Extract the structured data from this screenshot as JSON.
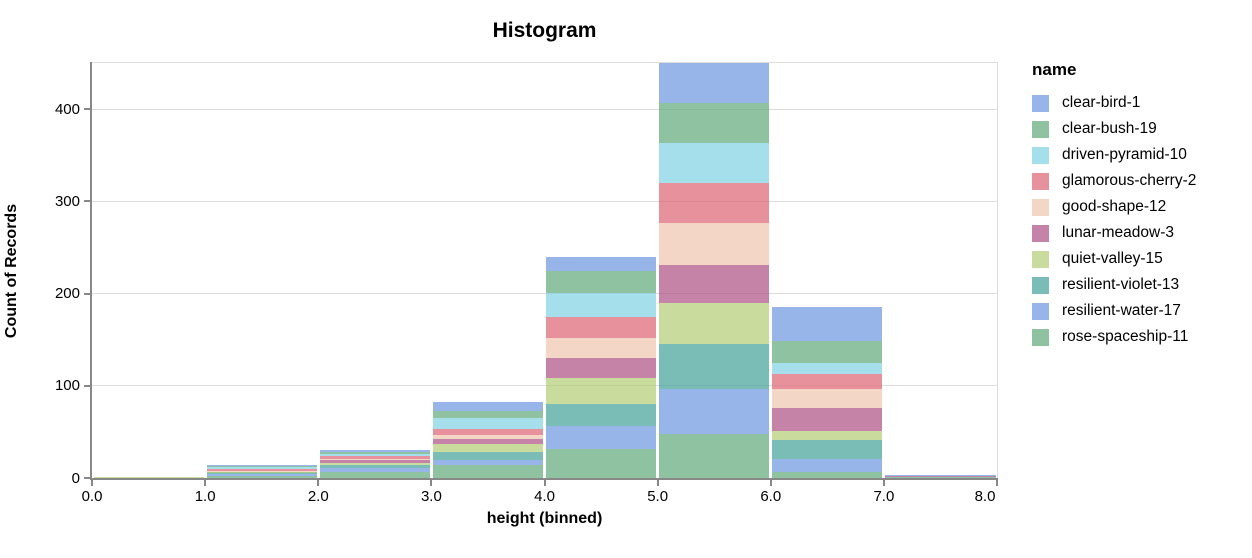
{
  "window": {
    "title": "Histogram"
  },
  "colors": {
    "background": "#ffffff",
    "axis_line": "#888888",
    "grid_line": "#dddddd",
    "view_border": "#dddddd",
    "text": "#000000"
  },
  "chart_data": {
    "type": "bar",
    "subtype": "stacked-histogram",
    "title": "Histogram",
    "xlabel": "height (binned)",
    "ylabel": "Count of Records",
    "legend_title": "name",
    "legend_position": "right",
    "grid": true,
    "xlim": [
      0,
      8
    ],
    "ylim": [
      0,
      450
    ],
    "bin_edges": [
      0,
      1,
      2,
      3,
      4,
      5,
      6,
      7,
      8
    ],
    "x_tick_labels": [
      "0.0",
      "1.0",
      "2.0",
      "3.0",
      "4.0",
      "5.0",
      "6.0",
      "7.0",
      "8.0"
    ],
    "y_tick_values": [
      0,
      100,
      200,
      300,
      400
    ],
    "bar_opacity": 0.7,
    "stack_order": "first-series-on-top",
    "series": [
      {
        "name": "clear-bird-1",
        "color": "#6c95e0",
        "values": [
          0,
          1,
          2,
          9,
          16,
          43,
          36,
          1
        ]
      },
      {
        "name": "clear-bush-19",
        "color": "#5fa877",
        "values": [
          0,
          1,
          2,
          8,
          23,
          44,
          24,
          0
        ]
      },
      {
        "name": "driven-pyramid-10",
        "color": "#7dd1e2",
        "values": [
          0,
          2,
          2,
          12,
          26,
          43,
          12,
          0
        ]
      },
      {
        "name": "glamorous-cherry-2",
        "color": "#db6370",
        "values": [
          0,
          2,
          3,
          6,
          23,
          43,
          17,
          0
        ]
      },
      {
        "name": "good-shape-12",
        "color": "#eec5ad",
        "values": [
          0,
          1,
          2,
          5,
          22,
          46,
          20,
          0
        ]
      },
      {
        "name": "lunar-meadow-3",
        "color": "#ac4e81",
        "values": [
          0,
          0,
          3,
          5,
          22,
          41,
          25,
          1
        ]
      },
      {
        "name": "quiet-valley-15",
        "color": "#b2cd74",
        "values": [
          1,
          1,
          2,
          9,
          28,
          45,
          10,
          0
        ]
      },
      {
        "name": "resilient-violet-13",
        "color": "#40a197",
        "values": [
          0,
          2,
          3,
          8,
          24,
          48,
          20,
          0
        ]
      },
      {
        "name": "resilient-water-17",
        "color": "#6c95e0",
        "values": [
          0,
          2,
          5,
          6,
          25,
          49,
          15,
          0
        ]
      },
      {
        "name": "rose-spaceship-11",
        "color": "#5fa877",
        "values": [
          0,
          2,
          6,
          14,
          31,
          48,
          6,
          1
        ]
      }
    ],
    "bin_totals": [
      1,
      14,
      30,
      82,
      240,
      450,
      185,
      3
    ]
  }
}
